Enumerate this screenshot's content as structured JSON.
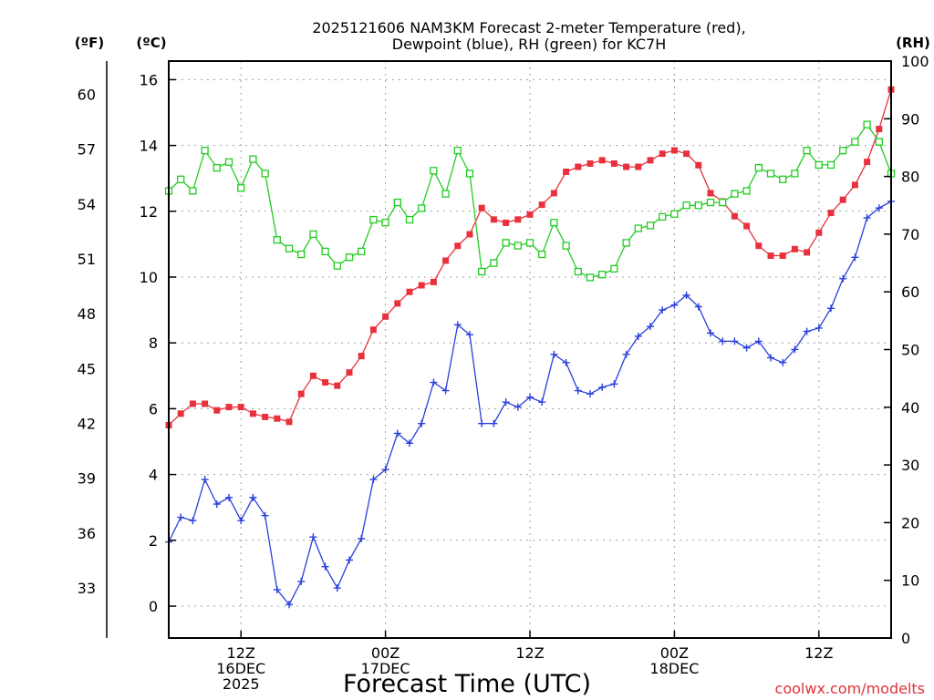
{
  "chart_data": {
    "type": "line",
    "title_line1": "2025121606 NAM3KM Forecast 2-meter Temperature (red),",
    "title_line2": "Dewpoint (blue), RH (green) for KC7H",
    "xlabel": "Forecast Time (UTC)",
    "credit": "coolwx.com/modelts",
    "units": {
      "fahrenheit": "(ºF)",
      "celsius": "(ºC)",
      "rh": "(RH)"
    },
    "y_celsius": {
      "min": -1,
      "max": 16.6,
      "ticks": [
        "0",
        "2",
        "4",
        "6",
        "8",
        "10",
        "12",
        "14",
        "16"
      ]
    },
    "y_fahrenheit_ticks": [
      "33",
      "36",
      "39",
      "42",
      "45",
      "48",
      "51",
      "54",
      "57",
      "60"
    ],
    "y_rh": {
      "min": 0,
      "max": 100,
      "ticks": [
        "0",
        "10",
        "20",
        "30",
        "40",
        "50",
        "60",
        "70",
        "80",
        "90",
        "100"
      ]
    },
    "x_ticks": [
      {
        "hour": 6,
        "lines": [
          "12Z",
          "16DEC",
          "2025"
        ]
      },
      {
        "hour": 18,
        "lines": [
          "00Z",
          "17DEC"
        ]
      },
      {
        "hour": 30,
        "lines": [
          "12Z"
        ]
      },
      {
        "hour": 42,
        "lines": [
          "00Z",
          "18DEC"
        ]
      },
      {
        "hour": 54,
        "lines": [
          "12Z"
        ]
      }
    ],
    "series": [
      {
        "name": "Temperature",
        "axis": "celsius",
        "color": "#e8313c",
        "marker": "filled-square",
        "x": [
          0,
          1,
          2,
          3,
          4,
          5,
          6,
          7,
          8,
          9,
          10,
          11,
          12,
          13,
          14,
          15,
          16,
          17,
          18,
          19,
          20,
          21,
          22,
          23,
          24,
          25,
          26,
          27,
          28,
          29,
          30,
          31,
          32,
          33,
          34,
          35,
          36,
          37,
          38,
          39,
          40,
          41,
          42,
          43,
          44,
          45,
          46,
          47,
          48,
          49,
          50,
          51,
          52,
          53,
          54,
          55,
          56,
          57,
          58,
          59,
          60
        ],
        "values": [
          5.5,
          5.85,
          6.15,
          6.15,
          5.95,
          6.05,
          6.05,
          5.85,
          5.75,
          5.7,
          5.6,
          6.45,
          7.0,
          6.8,
          6.7,
          7.1,
          7.6,
          8.4,
          8.8,
          9.2,
          9.55,
          9.75,
          9.85,
          10.5,
          10.95,
          11.3,
          12.1,
          11.75,
          11.65,
          11.75,
          11.9,
          12.2,
          12.55,
          13.2,
          13.35,
          13.45,
          13.55,
          13.45,
          13.35,
          13.35,
          13.55,
          13.75,
          13.85,
          13.75,
          13.4,
          12.55,
          12.3,
          11.85,
          11.55,
          10.95,
          10.65,
          10.65,
          10.85,
          10.75,
          11.35,
          11.95,
          12.35,
          12.8,
          13.5,
          14.5,
          15.7
        ]
      },
      {
        "name": "Dewpoint",
        "axis": "celsius",
        "color": "#2a3fdc",
        "marker": "plus",
        "x": [
          0,
          1,
          2,
          3,
          4,
          5,
          6,
          7,
          8,
          9,
          10,
          11,
          12,
          13,
          14,
          15,
          16,
          17,
          18,
          19,
          20,
          21,
          22,
          23,
          24,
          25,
          26,
          27,
          28,
          29,
          30,
          31,
          32,
          33,
          34,
          35,
          36,
          37,
          38,
          39,
          40,
          41,
          42,
          43,
          44,
          45,
          46,
          47,
          48,
          49,
          50,
          51,
          52,
          53,
          54,
          55,
          56,
          57,
          58,
          59,
          60
        ],
        "values": [
          1.95,
          2.7,
          2.6,
          3.85,
          3.1,
          3.3,
          2.6,
          3.3,
          2.75,
          0.5,
          0.05,
          0.75,
          2.1,
          1.2,
          0.55,
          1.4,
          2.05,
          3.85,
          4.15,
          5.25,
          4.95,
          5.55,
          6.8,
          6.55,
          8.55,
          8.25,
          5.55,
          5.55,
          6.2,
          6.05,
          6.35,
          6.2,
          7.65,
          7.4,
          6.55,
          6.45,
          6.65,
          6.75,
          7.65,
          8.2,
          8.5,
          9.0,
          9.15,
          9.45,
          9.1,
          8.3,
          8.05,
          8.05,
          7.85,
          8.05,
          7.55,
          7.4,
          7.8,
          8.35,
          8.45,
          9.05,
          9.95,
          10.6,
          11.8,
          12.1,
          12.3
        ]
      },
      {
        "name": "RH",
        "axis": "rh",
        "color": "#22cc22",
        "marker": "open-square",
        "x": [
          0,
          1,
          2,
          3,
          4,
          5,
          6,
          7,
          8,
          9,
          10,
          11,
          12,
          13,
          14,
          15,
          16,
          17,
          18,
          19,
          20,
          21,
          22,
          23,
          24,
          25,
          26,
          27,
          28,
          29,
          30,
          31,
          32,
          33,
          34,
          35,
          36,
          37,
          38,
          39,
          40,
          41,
          42,
          43,
          44,
          45,
          46,
          47,
          48,
          49,
          50,
          51,
          52,
          53,
          54,
          55,
          56,
          57,
          58,
          59,
          60
        ],
        "values": [
          77.5,
          79.5,
          77.5,
          84.5,
          81.5,
          82.5,
          78,
          83,
          80.5,
          69,
          67.5,
          66.5,
          70,
          67,
          64.5,
          66,
          67,
          72.5,
          72,
          75.5,
          72.5,
          74.5,
          81,
          77,
          84.5,
          80.5,
          63.5,
          65,
          68.5,
          68,
          68.5,
          66.5,
          72,
          68,
          63.5,
          62.5,
          63,
          64,
          68.5,
          71,
          71.5,
          73,
          73.5,
          75,
          75,
          75.5,
          75.5,
          77,
          77.5,
          81.5,
          80.5,
          79.5,
          80.5,
          84.5,
          82,
          82,
          84.5,
          86,
          89,
          86,
          80.5
        ]
      }
    ]
  }
}
